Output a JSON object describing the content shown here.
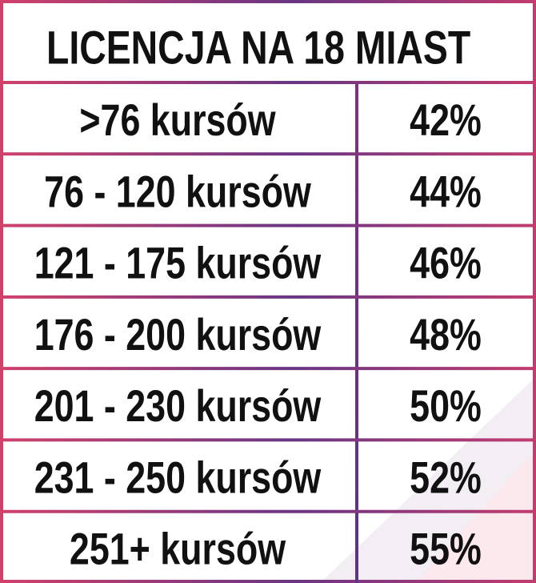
{
  "header": {
    "title": "LICENCJA NA 18 MIAST"
  },
  "table": {
    "rows": [
      [
        ">76 kursów",
        "42%"
      ],
      [
        "76 - 120 kursów",
        "44%"
      ],
      [
        "121 - 175 kursów",
        "46%"
      ],
      [
        "176 - 200 kursów",
        "48%"
      ],
      [
        "201 - 230 kursów",
        "50%"
      ],
      [
        "231 - 250 kursów",
        "52%"
      ],
      [
        "251+ kursów",
        "55%"
      ]
    ]
  }
}
